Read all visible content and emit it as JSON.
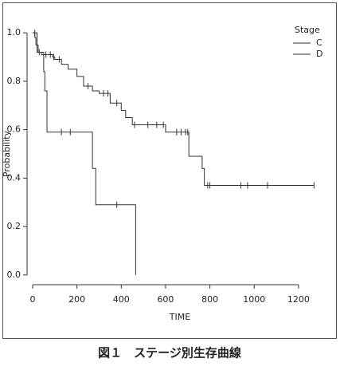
{
  "chart_data": {
    "type": "step",
    "x_label": "TIME",
    "y_label": "Probability",
    "legend_title": "Stage",
    "caption": "図１　ステージ別生存曲線",
    "xlim": [
      -25,
      1326
    ],
    "ylim": [
      -0.04,
      1.04
    ],
    "xticks": [
      0,
      200,
      400,
      600,
      800,
      1000,
      1200
    ],
    "yticks": [
      {
        "value": 0,
        "label": "0.0"
      },
      {
        "value": 0.2,
        "label": "0.2"
      },
      {
        "value": 0.4,
        "label": "0.4"
      },
      {
        "value": 0.6,
        "label": "0.6"
      },
      {
        "value": 0.8,
        "label": "0.8"
      },
      {
        "value": 1,
        "label": "1.0"
      }
    ],
    "legend": "top-right",
    "series": [
      {
        "name": "C",
        "color": "#333333",
        "x": [
          0,
          10,
          15,
          25,
          40,
          90,
          100,
          130,
          160,
          200,
          230,
          270,
          300,
          350,
          400,
          420,
          450,
          600,
          705,
          765,
          775,
          1270
        ],
        "values": [
          1.0,
          0.98,
          0.95,
          0.92,
          0.91,
          0.9,
          0.89,
          0.87,
          0.85,
          0.82,
          0.78,
          0.76,
          0.75,
          0.71,
          0.68,
          0.65,
          0.62,
          0.59,
          0.49,
          0.44,
          0.37,
          0.37
        ],
        "censor_x": [
          30,
          60,
          80,
          95,
          120,
          250,
          320,
          340,
          380,
          460,
          520,
          560,
          590,
          650,
          670,
          690,
          700,
          790,
          800,
          940,
          970,
          1060,
          1270
        ],
        "censor_y": [
          0.92,
          0.91,
          0.91,
          0.9,
          0.89,
          0.78,
          0.75,
          0.75,
          0.71,
          0.62,
          0.62,
          0.62,
          0.62,
          0.59,
          0.59,
          0.59,
          0.59,
          0.37,
          0.37,
          0.37,
          0.37,
          0.37,
          0.37
        ]
      },
      {
        "name": "D",
        "color": "#333333",
        "x": [
          0,
          20,
          50,
          55,
          65,
          260,
          270,
          285,
          465
        ],
        "values": [
          1.0,
          0.92,
          0.84,
          0.76,
          0.59,
          0.59,
          0.44,
          0.29,
          0.0
        ],
        "censor_x": [
          10,
          130,
          170,
          380
        ],
        "censor_y": [
          1.0,
          0.59,
          0.59,
          0.29
        ]
      }
    ]
  }
}
